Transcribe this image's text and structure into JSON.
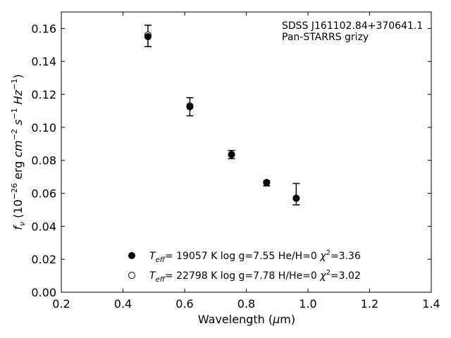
{
  "chart_data": {
    "type": "scatter",
    "xlabel": "Wavelength (μm)",
    "ylabel": "f_ν (10^-26 erg cm^-2 s^-1 Hz^-1)",
    "xlim": [
      0.2,
      1.4
    ],
    "ylim": [
      0.0,
      0.17
    ],
    "x_ticks": [
      "0.2",
      "0.4",
      "0.6",
      "0.8",
      "1.0",
      "1.2",
      "1.4"
    ],
    "y_ticks": [
      "0.00",
      "0.02",
      "0.04",
      "0.06",
      "0.08",
      "0.10",
      "0.12",
      "0.14",
      "0.16"
    ],
    "annotation": [
      "SDSS J161102.84+370641.1",
      "Pan-STARRS grizy"
    ],
    "grid": false,
    "legend_position": "bottom-center",
    "observed": {
      "x": [
        0.481,
        0.617,
        0.752,
        0.866,
        0.962
      ],
      "y": [
        0.1555,
        0.1125,
        0.0835,
        0.066,
        0.0595
      ],
      "yerr": [
        0.0065,
        0.0055,
        0.0025,
        0.0015,
        0.0065
      ]
    },
    "series": [
      {
        "name": "T_eff= 19057 K  log g=7.55  He/H=0  χ²=3.36",
        "marker": "filled",
        "x": [
          0.481,
          0.617,
          0.752,
          0.866,
          0.962
        ],
        "y": [
          0.155,
          0.1125,
          0.0835,
          0.0665,
          0.057
        ]
      },
      {
        "name": "T_eff= 22798 K  log g=7.78  H/He=0  χ²=3.02",
        "marker": "open",
        "x": [
          0.481,
          0.617,
          0.752,
          0.866,
          0.962
        ],
        "y": [
          0.156,
          0.113,
          0.0835,
          0.0665,
          0.057
        ]
      }
    ],
    "legend": [
      {
        "teff": "19057 K",
        "logg": "log g=7.55",
        "comp": "He/H=0",
        "chi": "=3.36"
      },
      {
        "teff": "22798 K",
        "logg": "log g=7.78",
        "comp": "H/He=0",
        "chi": "=3.02"
      }
    ]
  }
}
